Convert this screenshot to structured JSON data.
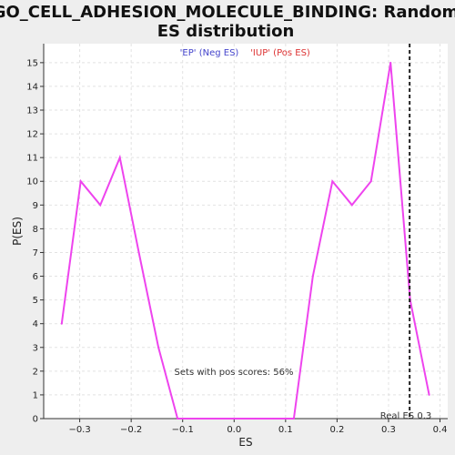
{
  "chart_data": {
    "type": "line",
    "title_line1": "GO_CELL_ADHESION_MOLECULE_BINDING: Random",
    "title_line2": "ES distribution",
    "xlabel": "ES",
    "ylabel": "P(ES)",
    "xlim": [
      -0.37,
      0.415
    ],
    "ylim": [
      0,
      15.8
    ],
    "x_ticks": [
      -0.3,
      -0.2,
      -0.1,
      0,
      0.1,
      0.2,
      0.3,
      0.4
    ],
    "x_tick_labels": [
      "−0.3",
      "−0.2",
      "−0.1",
      "0.0",
      "0.1",
      "0.2",
      "0.3",
      "0.4"
    ],
    "y_ticks": [
      0,
      1,
      2,
      3,
      4,
      5,
      6,
      7,
      8,
      9,
      10,
      11,
      12,
      13,
      14,
      15
    ],
    "y_tick_labels": [
      "0",
      "1",
      "2",
      "3",
      "4",
      "5",
      "6",
      "7",
      "8",
      "9",
      "10",
      "11",
      "12",
      "13",
      "14",
      "15"
    ],
    "grid": true,
    "legend": [
      {
        "label": "'EP' (Neg ES)",
        "color": "#4444cc"
      },
      {
        "label": "'IUP' (Pos ES)",
        "color": "#dd3333"
      }
    ],
    "series": [
      {
        "color": "#ee44ee",
        "x": [
          -0.335,
          -0.298,
          -0.26,
          -0.222,
          -0.185,
          -0.147,
          -0.11,
          -0.072,
          -0.035,
          0.003,
          0.04,
          0.078,
          0.116,
          0.153,
          0.191,
          0.229,
          0.266,
          0.304,
          0.342,
          0.379
        ],
        "y": [
          4,
          10,
          9,
          11,
          7,
          3,
          0,
          0,
          0,
          0,
          0,
          0,
          0,
          6,
          10,
          9,
          10,
          15,
          5,
          1
        ]
      }
    ],
    "real_es": 0.341,
    "real_es_label": "Real ES 0.3",
    "annotation": "Sets with pos scores: 56%"
  }
}
